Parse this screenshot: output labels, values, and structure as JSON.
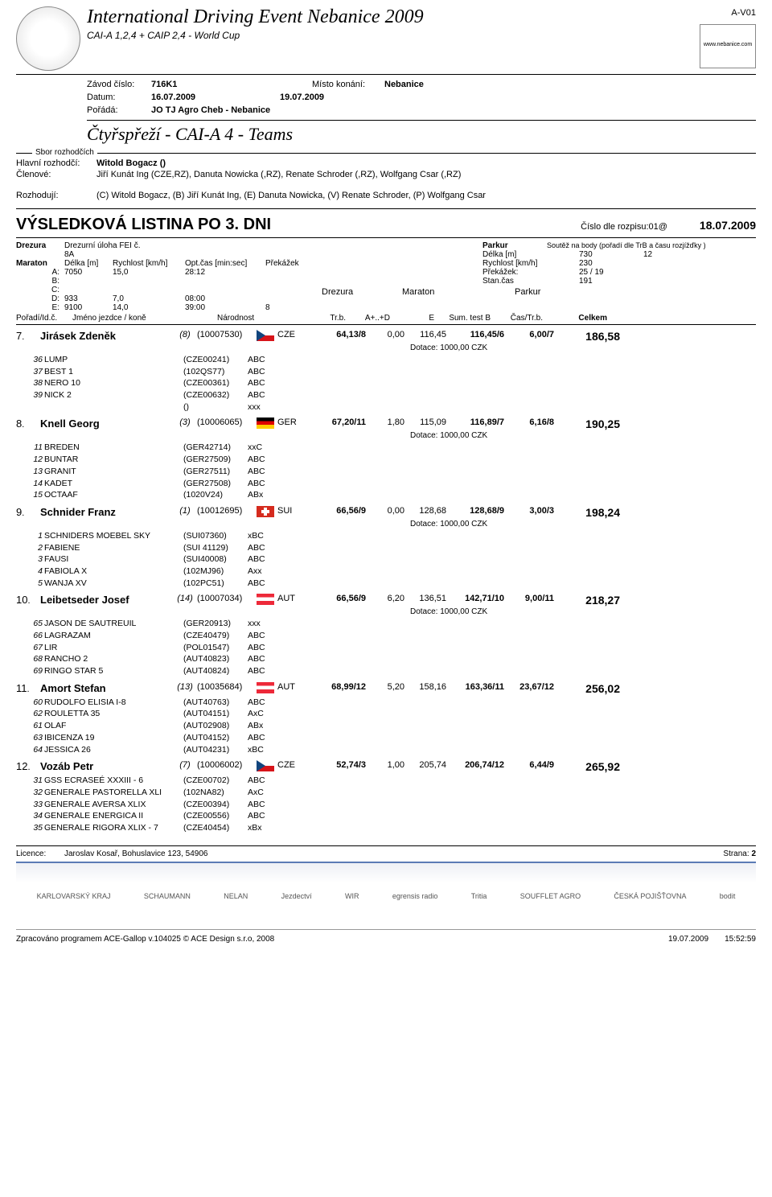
{
  "header": {
    "title": "International Driving Event Nebanice 2009",
    "subtitle": "CAI-A 1,2,4 + CAIP 2,4 - World Cup",
    "code": "A-V01",
    "rightlogo": "www.nebanice.com"
  },
  "info": {
    "zavod_lbl": "Závod číslo:",
    "zavod": "716K1",
    "misto_lbl": "Místo konání:",
    "misto": "Nebanice",
    "datum_lbl": "Datum:",
    "datum": "16.07.2009",
    "datum2": "19.07.2009",
    "porada_lbl": "Pořádá:",
    "porada": "JO TJ Agro Cheb - Nebanice",
    "category": "Čtyřspřeží - CAI-A 4 - Teams"
  },
  "judges": {
    "box_label": "Sbor rozhodčích",
    "hlavni_lbl": "Hlavní rozhodčí:",
    "hlavni": "Witold Bogacz ()",
    "clenove_lbl": "Členové:",
    "clenove": "Jiří Kunát Ing (CZE,RZ), Danuta Nowicka (,RZ), Renate Schroder (,RZ), Wolfgang Csar (,RZ)",
    "rozhoduji_lbl": "Rozhodují:",
    "rozhoduji": "(C) Witold Bogacz, (B) Jiří Kunát Ing, (E) Danuta Nowicka, (V) Renate Schroder, (P) Wolfgang Csar"
  },
  "result": {
    "title": "VÝSLEDKOVÁ LISTINA PO 3. DNI",
    "cislo_lbl": "Číslo dle rozpisu:",
    "cislo": "01@",
    "date": "18.07.2009"
  },
  "params": {
    "drezura": "Drezura",
    "drez_detail": "Drezurní úloha FEI č. 8A",
    "maraton": "Maraton",
    "delka": "Délka [m]",
    "rychlost": "Rychlost [km/h]",
    "optcas": "Opt.čas [min:sec]",
    "prekazek": "Překážek",
    "rows": [
      {
        "l": "A:",
        "a": "7050",
        "b": "15,0",
        "c": "28:12",
        "d": ""
      },
      {
        "l": "B:",
        "a": "",
        "b": "",
        "c": "",
        "d": ""
      },
      {
        "l": "C:",
        "a": "",
        "b": "",
        "c": "",
        "d": ""
      },
      {
        "l": "D:",
        "a": "933",
        "b": "7,0",
        "c": "08:00",
        "d": ""
      },
      {
        "l": "E:",
        "a": "9100",
        "b": "14,0",
        "c": "39:00",
        "d": "8"
      }
    ],
    "parkur": "Parkur",
    "soutez": "Soutěž na body (pořadí dle TrB a času rozjížďky )",
    "p_delka": "Délka [m]",
    "p_delka_v": "730",
    "p_dvanact": "12",
    "p_rychlost": "Rychlost [km/h]",
    "p_rychlost_v": "230",
    "p_prekazek": "Překážek:",
    "p_prekazek_v": "25 / 19",
    "p_stancas": "Stan.čas",
    "p_stancas_v": "191",
    "sub_drezura": "Drezura",
    "sub_maraton": "Maraton",
    "sub_parkur": "Parkur"
  },
  "cols": {
    "c1": "Pořadí/Id.č.",
    "c2": "Jméno jezdce / koně",
    "c3": "Národnost",
    "c4": "Tr.b.",
    "c5": "A+..+D",
    "c6": "E",
    "c7": "Sum. test B",
    "c8": "Čas/Tr.b.",
    "c9": "Celkem"
  },
  "entries": [
    {
      "rank": "7",
      "name": "Jirásek Zdeněk",
      "draw": "(8)",
      "feino": "(10007530)",
      "flag": "cze",
      "nat": "CZE",
      "trb": "64,13/8",
      "apd": "0,00",
      "e": "116,45",
      "sumb": "116,45/6",
      "castrb": "6,00/7",
      "total": "186,58",
      "dotace": "Dotace: 1000,00 CZK",
      "horses": [
        {
          "n": "36",
          "name": "LUMP",
          "pass": "(CZE00241)",
          "abc": "ABC"
        },
        {
          "n": "37",
          "name": "BEST 1",
          "pass": "(102QS77)",
          "abc": "ABC"
        },
        {
          "n": "38",
          "name": "NERO 10",
          "pass": "(CZE00361)",
          "abc": "ABC"
        },
        {
          "n": "39",
          "name": "NICK 2",
          "pass": "(CZE00632)",
          "abc": "ABC"
        },
        {
          "n": "",
          "name": "",
          "pass": "()",
          "abc": "xxx"
        }
      ]
    },
    {
      "rank": "8",
      "name": "Knell Georg",
      "draw": "(3)",
      "feino": "(10006065)",
      "flag": "ger",
      "nat": "GER",
      "trb": "67,20/11",
      "apd": "1,80",
      "e": "115,09",
      "sumb": "116,89/7",
      "castrb": "6,16/8",
      "total": "190,25",
      "dotace": "Dotace: 1000,00 CZK",
      "horses": [
        {
          "n": "11",
          "name": "BREDEN",
          "pass": "(GER42714)",
          "abc": "xxC"
        },
        {
          "n": "12",
          "name": "BUNTAR",
          "pass": "(GER27509)",
          "abc": "ABC"
        },
        {
          "n": "13",
          "name": "GRANIT",
          "pass": "(GER27511)",
          "abc": "ABC"
        },
        {
          "n": "14",
          "name": "KADET",
          "pass": "(GER27508)",
          "abc": "ABC"
        },
        {
          "n": "15",
          "name": "OCTAAF",
          "pass": "(1020V24)",
          "abc": "ABx"
        }
      ]
    },
    {
      "rank": "9",
      "name": "Schnider Franz",
      "draw": "(1)",
      "feino": "(10012695)",
      "flag": "sui",
      "nat": "SUI",
      "trb": "66,56/9",
      "apd": "0,00",
      "e": "128,68",
      "sumb": "128,68/9",
      "castrb": "3,00/3",
      "total": "198,24",
      "dotace": "Dotace: 1000,00 CZK",
      "horses": [
        {
          "n": "1",
          "name": "SCHNIDERS MOEBEL SKY",
          "pass": "(SUI07360)",
          "abc": "xBC"
        },
        {
          "n": "2",
          "name": "FABIENE",
          "pass": "(SUI 41129)",
          "abc": "ABC"
        },
        {
          "n": "3",
          "name": "FAUSI",
          "pass": "(SUI40008)",
          "abc": "ABC"
        },
        {
          "n": "4",
          "name": "FABIOLA X",
          "pass": "(102MJ96)",
          "abc": "Axx"
        },
        {
          "n": "5",
          "name": "WANJA XV",
          "pass": "(102PC51)",
          "abc": "ABC"
        }
      ]
    },
    {
      "rank": "10",
      "name": "Leibetseder Josef",
      "draw": "(14)",
      "feino": "(10007034)",
      "flag": "aut",
      "nat": "AUT",
      "trb": "66,56/9",
      "apd": "6,20",
      "e": "136,51",
      "sumb": "142,71/10",
      "castrb": "9,00/11",
      "total": "218,27",
      "dotace": "Dotace: 1000,00 CZK",
      "horses": [
        {
          "n": "65",
          "name": "JASON DE SAUTREUIL",
          "pass": "(GER20913)",
          "abc": "xxx"
        },
        {
          "n": "66",
          "name": "LAGRAZAM",
          "pass": "(CZE40479)",
          "abc": "ABC"
        },
        {
          "n": "67",
          "name": "LIR",
          "pass": "(POL01547)",
          "abc": "ABC"
        },
        {
          "n": "68",
          "name": "RANCHO 2",
          "pass": "(AUT40823)",
          "abc": "ABC"
        },
        {
          "n": "69",
          "name": "RINGO STAR 5",
          "pass": "(AUT40824)",
          "abc": "ABC"
        }
      ]
    },
    {
      "rank": "11",
      "name": "Amort Stefan",
      "draw": "(13)",
      "feino": "(10035684)",
      "flag": "aut",
      "nat": "AUT",
      "trb": "68,99/12",
      "apd": "5,20",
      "e": "158,16",
      "sumb": "163,36/11",
      "castrb": "23,67/12",
      "total": "256,02",
      "dotace": "",
      "horses": [
        {
          "n": "60",
          "name": "RUDOLFO ELISIA I-8",
          "pass": "(AUT40763)",
          "abc": "ABC"
        },
        {
          "n": "62",
          "name": "ROULETTA 35",
          "pass": "(AUT04151)",
          "abc": "AxC"
        },
        {
          "n": "61",
          "name": "OLAF",
          "pass": "(AUT02908)",
          "abc": "ABx"
        },
        {
          "n": "63",
          "name": "IBICENZA 19",
          "pass": "(AUT04152)",
          "abc": "ABC"
        },
        {
          "n": "64",
          "name": "JESSICA 26",
          "pass": "(AUT04231)",
          "abc": "xBC"
        }
      ]
    },
    {
      "rank": "12",
      "name": "Vozáb Petr",
      "draw": "(7)",
      "feino": "(10006002)",
      "flag": "cze",
      "nat": "CZE",
      "trb": "52,74/3",
      "apd": "1,00",
      "e": "205,74",
      "sumb": "206,74/12",
      "castrb": "6,44/9",
      "total": "265,92",
      "dotace": "",
      "horses": [
        {
          "n": "31",
          "name": "GSS ECRASEÉ XXXIII - 6",
          "pass": "(CZE00702)",
          "abc": "ABC"
        },
        {
          "n": "32",
          "name": "GENERALE PASTORELLA XLI",
          "pass": "(102NA82)",
          "abc": "AxC"
        },
        {
          "n": "33",
          "name": "GENERALE AVERSA XLIX",
          "pass": "(CZE00394)",
          "abc": "ABC"
        },
        {
          "n": "34",
          "name": "GENERALE ENERGICA II",
          "pass": "(CZE00556)",
          "abc": "ABC"
        },
        {
          "n": "35",
          "name": "GENERALE RIGORA XLIX - 7",
          "pass": "(CZE40454)",
          "abc": "xBx"
        }
      ]
    }
  ],
  "footer": {
    "licence_lbl": "Licence:",
    "licence": "Jaroslav Kosař, Bohuslavice 123, 54906",
    "strana_lbl": "Strana:",
    "strana": "2",
    "bottom": "Zpracováno programem  ACE-Gallop v.104025  © ACE Design s.r.o, 2008",
    "bdate": "19.07.2009",
    "btime": "15:52:59"
  },
  "sponsors": [
    "KARLOVARSKÝ KRAJ",
    "SCHAUMANN",
    "NELAN",
    "Jezdectví",
    "WIR",
    "egrensis radio",
    "Tritia",
    "SOUFFLET AGRO",
    "ČESKÁ POJIŠŤOVNA",
    "bodit"
  ]
}
